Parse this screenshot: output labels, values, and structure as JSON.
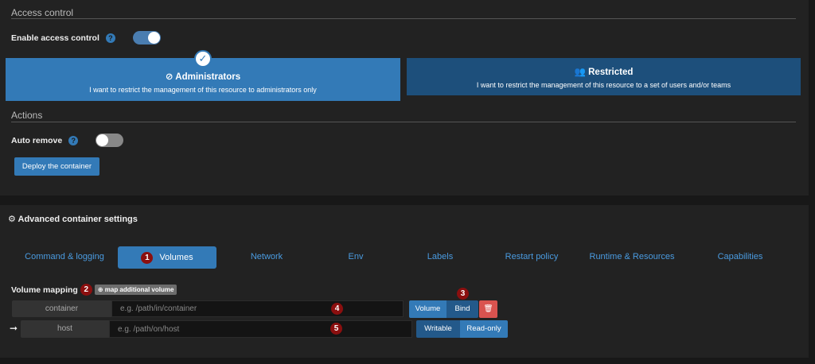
{
  "access_control": {
    "title": "Access control",
    "enable_label": "Enable access control",
    "enabled": true,
    "options": [
      {
        "title": "Administrators",
        "desc": "I want to restrict the management of this resource to administrators only",
        "icon": "eye-slash-icon",
        "selected": true
      },
      {
        "title": "Restricted",
        "desc": "I want to restrict the management of this resource to a set of users and/or teams",
        "icon": "users-icon",
        "selected": false
      }
    ]
  },
  "actions": {
    "title": "Actions",
    "auto_remove_label": "Auto remove",
    "auto_remove": false,
    "deploy_label": "Deploy the container"
  },
  "advanced": {
    "title": "Advanced container settings",
    "tabs": [
      "Command & logging",
      "Volumes",
      "Network",
      "Env",
      "Labels",
      "Restart policy",
      "Runtime & Resources",
      "Capabilities"
    ],
    "active_tab": "Volumes"
  },
  "volumes": {
    "label": "Volume mapping",
    "add_label": "map additional volume",
    "container_label": "container",
    "container_placeholder": "e.g. /path/in/container",
    "host_label": "host",
    "host_placeholder": "e.g. /path/on/host",
    "type_options": [
      "Volume",
      "Bind"
    ],
    "type_selected": "Bind",
    "mode_options": [
      "Writable",
      "Read-only"
    ],
    "mode_selected": "Writable"
  },
  "badges": [
    "1",
    "2",
    "3",
    "4",
    "5"
  ],
  "colors": {
    "primary": "#337ab7",
    "dark_primary": "#1d4f7b",
    "danger": "#d9534f",
    "badge": "#8b0f0f"
  }
}
